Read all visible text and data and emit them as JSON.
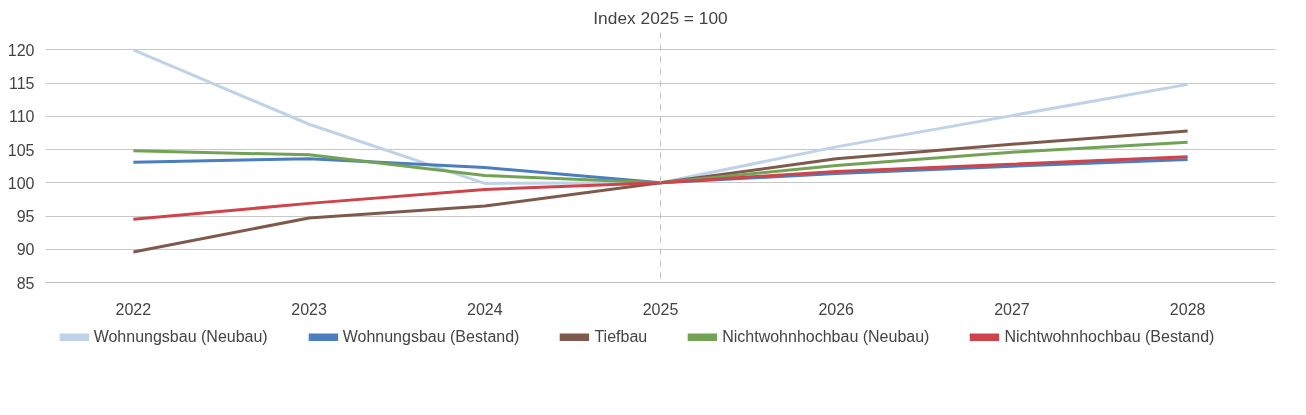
{
  "chart_data": {
    "type": "line",
    "title": "Index 2025 = 100",
    "categories": [
      "2022",
      "2023",
      "2024",
      "2025",
      "2026",
      "2027",
      "2028"
    ],
    "series": [
      {
        "name": "Wohnungsbau (Neubau)",
        "color": "#c0d2ea",
        "values": [
          120,
          108.8,
          99.9,
          100,
          105.4,
          110.1,
          114.8
        ]
      },
      {
        "name": "Wohnungsbau (Bestand)",
        "color": "#4a7ebf",
        "values": [
          103.1,
          103.6,
          102.3,
          100,
          101.4,
          102.5,
          103.5
        ]
      },
      {
        "name": "Tiefbau",
        "color": "#7f5a4c",
        "values": [
          89.6,
          94.7,
          96.5,
          100,
          103.6,
          105.8,
          107.8
        ]
      },
      {
        "name": "Nichtwohnhochbau (Neubau)",
        "color": "#72a254",
        "values": [
          104.8,
          104.2,
          101.1,
          100,
          102.6,
          104.6,
          106.1
        ]
      },
      {
        "name": "Nichtwohnhochbau (Bestand)",
        "color": "#cf434b",
        "values": [
          94.5,
          96.9,
          99,
          100,
          101.7,
          102.8,
          103.9
        ]
      }
    ],
    "ylim": [
      85,
      122.6
    ],
    "yticks": [
      85,
      90,
      95,
      100,
      105,
      110,
      115,
      120
    ],
    "ref_lines": [
      {
        "axis": "x",
        "value": "2025",
        "color": "#bfbfbf",
        "line_style": "dashed"
      }
    ],
    "grid": "y",
    "legend": "bottom",
    "marker": "none",
    "line_style": "solid"
  }
}
